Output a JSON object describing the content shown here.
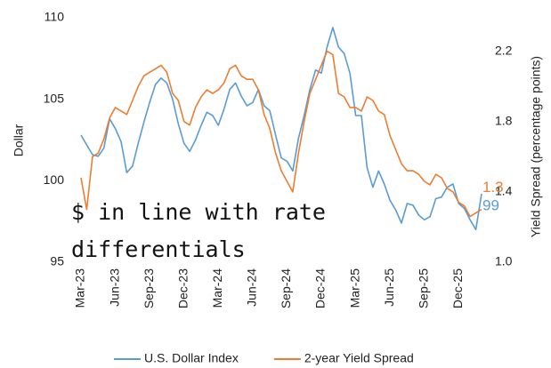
{
  "chart_data": {
    "type": "line",
    "ylabel": "Dollar",
    "y2label": "Yield Spread (percentage points)",
    "annotation_lines": [
      "$ in line with rate",
      "differentials"
    ],
    "categories": [
      "Mar-23",
      null,
      null,
      null,
      null,
      null,
      "Jun-23",
      null,
      null,
      null,
      null,
      null,
      "Sep-23",
      null,
      null,
      null,
      null,
      null,
      "Dec-23",
      null,
      null,
      null,
      null,
      null,
      "Mar-24",
      null,
      null,
      null,
      null,
      null,
      "Jun-24",
      null,
      null,
      null,
      null,
      null,
      "Sep-24",
      null,
      null,
      null,
      null,
      null,
      "Dec-24",
      null,
      null,
      null,
      null,
      null,
      "Mar-25",
      null,
      null,
      null,
      null,
      null,
      "Jun-25",
      null,
      null,
      null,
      null,
      null,
      "Sep-25",
      null,
      null,
      null,
      null,
      null,
      "Dec-25",
      null,
      null,
      null,
      null
    ],
    "ylim": [
      95,
      110
    ],
    "yticks": [
      95,
      100,
      105,
      110
    ],
    "y2lim": [
      1.0,
      2.39
    ],
    "y2ticks": [
      {
        "value": 1.0,
        "label": "1.0"
      },
      1.4,
      1.8,
      2.2
    ],
    "grid": false,
    "legend": "bottom",
    "series": [
      {
        "name": "U.S. Dollar Index",
        "color": "#5b9bd5",
        "axis": "y",
        "end_label": "99",
        "values": [
          102.8,
          102.2,
          101.6,
          101.5,
          102.0,
          103.8,
          103.2,
          102.4,
          100.5,
          100.9,
          102.3,
          103.6,
          104.8,
          105.9,
          106.3,
          106.0,
          105.0,
          103.5,
          102.3,
          101.8,
          102.5,
          103.4,
          104.2,
          104.0,
          103.4,
          104.4,
          105.6,
          106.0,
          105.2,
          104.6,
          104.8,
          105.6,
          104.6,
          104.3,
          102.8,
          101.4,
          101.2,
          100.6,
          102.6,
          104.0,
          105.6,
          106.8,
          106.6,
          108.2,
          109.4,
          108.2,
          107.8,
          106.6,
          104.0,
          104.0,
          100.8,
          99.6,
          100.6,
          99.8,
          98.8,
          98.2,
          97.4,
          98.6,
          98.5,
          97.9,
          97.6,
          97.8,
          98.9,
          99.0,
          99.6,
          99.8,
          98.6,
          98.3,
          97.6,
          97.0,
          99.2
        ]
      },
      {
        "name": "2-year Yield Spread",
        "color": "#ed7d31",
        "axis": "y2",
        "end_label": "1.3",
        "values": [
          1.48,
          1.3,
          1.6,
          1.62,
          1.7,
          1.82,
          1.88,
          1.86,
          1.84,
          1.92,
          2.0,
          2.06,
          2.08,
          2.1,
          2.12,
          2.08,
          1.96,
          1.92,
          1.8,
          1.78,
          1.88,
          1.94,
          1.98,
          1.96,
          1.98,
          2.02,
          2.1,
          2.12,
          2.06,
          2.04,
          2.04,
          1.98,
          1.84,
          1.76,
          1.62,
          1.52,
          1.46,
          1.4,
          1.62,
          1.8,
          1.96,
          2.04,
          2.12,
          2.2,
          2.18,
          1.96,
          1.94,
          1.88,
          1.88,
          1.86,
          1.94,
          1.92,
          1.86,
          1.84,
          1.72,
          1.64,
          1.56,
          1.52,
          1.52,
          1.5,
          1.46,
          1.44,
          1.5,
          1.48,
          1.42,
          1.4,
          1.34,
          1.32,
          1.26,
          1.28,
          1.3
        ]
      }
    ]
  }
}
